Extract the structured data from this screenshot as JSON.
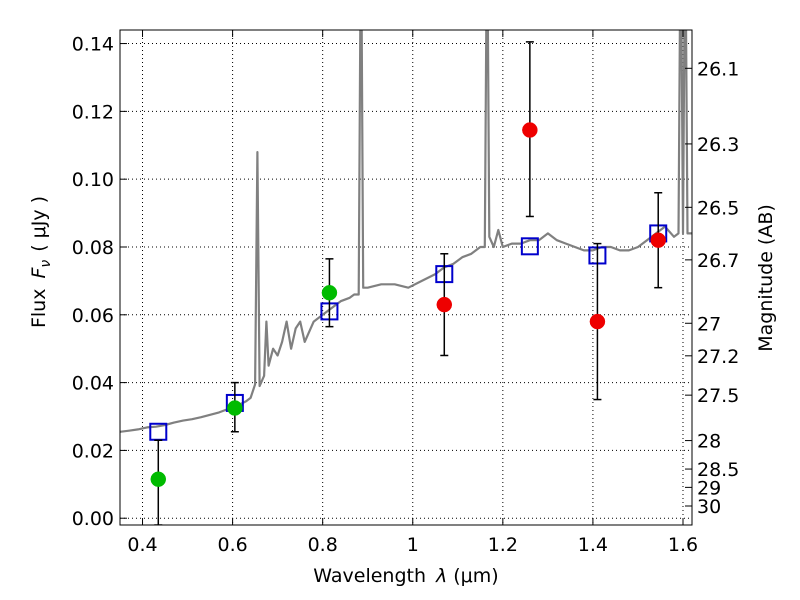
{
  "chart_data": {
    "type": "scatter",
    "xlabel": "Wavelength",
    "xlabel_symbol": "λ",
    "xlabel_unit": "(μm)",
    "ylabel": "Flux",
    "ylabel_symbol": "F",
    "ylabel_subscript": "ν",
    "ylabel_unit": "( μJy )",
    "y2label": "Magnitude (AB)",
    "xlim": [
      0.35,
      1.62
    ],
    "ylim": [
      -0.002,
      0.144
    ],
    "grid": true,
    "x_ticks": [
      {
        "value": 0.4,
        "label": "0.4"
      },
      {
        "value": 0.6,
        "label": "0.6"
      },
      {
        "value": 0.8,
        "label": "0.8"
      },
      {
        "value": 1.0,
        "label": "1"
      },
      {
        "value": 1.2,
        "label": "1.2"
      },
      {
        "value": 1.4,
        "label": "1.4"
      },
      {
        "value": 1.6,
        "label": "1.6"
      }
    ],
    "y_ticks": [
      {
        "value": 0.0,
        "label": "0.00"
      },
      {
        "value": 0.02,
        "label": "0.02"
      },
      {
        "value": 0.04,
        "label": "0.04"
      },
      {
        "value": 0.06,
        "label": "0.06"
      },
      {
        "value": 0.08,
        "label": "0.08"
      },
      {
        "value": 0.1,
        "label": "0.10"
      },
      {
        "value": 0.12,
        "label": "0.12"
      },
      {
        "value": 0.14,
        "label": "0.14"
      }
    ],
    "y2_ticks": [
      {
        "flux": 0.1327,
        "label": "26.1"
      },
      {
        "flux": 0.1104,
        "label": "26.3"
      },
      {
        "flux": 0.0917,
        "label": "26.5"
      },
      {
        "flux": 0.0762,
        "label": "26.7"
      },
      {
        "flux": 0.0575,
        "label": "27"
      },
      {
        "flux": 0.0479,
        "label": "27.2"
      },
      {
        "flux": 0.0363,
        "label": "27.5"
      },
      {
        "flux": 0.0229,
        "label": "28"
      },
      {
        "flux": 0.0145,
        "label": "28.5"
      },
      {
        "flux": 0.0091,
        "label": "29"
      },
      {
        "flux": 0.0036,
        "label": "30"
      }
    ],
    "colors": {
      "model": "#808080",
      "detection": "#00bb00",
      "dropout": "#ee0000",
      "model_photometry": "#0000cc",
      "errorbar": "#000000"
    },
    "series": [
      {
        "type": "line",
        "color": "#808080",
        "points": [
          [
            0.35,
            0.0255
          ],
          [
            0.37,
            0.0258
          ],
          [
            0.39,
            0.0262
          ],
          [
            0.41,
            0.0268
          ],
          [
            0.43,
            0.027
          ],
          [
            0.45,
            0.0275
          ],
          [
            0.47,
            0.0282
          ],
          [
            0.49,
            0.0288
          ],
          [
            0.51,
            0.0292
          ],
          [
            0.53,
            0.0298
          ],
          [
            0.55,
            0.0305
          ],
          [
            0.57,
            0.0312
          ],
          [
            0.59,
            0.0322
          ],
          [
            0.61,
            0.0332
          ],
          [
            0.63,
            0.0345
          ],
          [
            0.64,
            0.0355
          ],
          [
            0.65,
            0.0395
          ],
          [
            0.655,
            0.108
          ],
          [
            0.66,
            0.039
          ],
          [
            0.67,
            0.042
          ],
          [
            0.675,
            0.058
          ],
          [
            0.68,
            0.045
          ],
          [
            0.69,
            0.05
          ],
          [
            0.7,
            0.048
          ],
          [
            0.71,
            0.052
          ],
          [
            0.72,
            0.058
          ],
          [
            0.73,
            0.05
          ],
          [
            0.74,
            0.056
          ],
          [
            0.75,
            0.058
          ],
          [
            0.76,
            0.052
          ],
          [
            0.78,
            0.058
          ],
          [
            0.8,
            0.06
          ],
          [
            0.82,
            0.062
          ],
          [
            0.84,
            0.064
          ],
          [
            0.86,
            0.065
          ],
          [
            0.87,
            0.066
          ],
          [
            0.88,
            0.066
          ],
          [
            0.885,
            0.18
          ],
          [
            0.89,
            0.068
          ],
          [
            0.9,
            0.068
          ],
          [
            0.93,
            0.069
          ],
          [
            0.96,
            0.069
          ],
          [
            0.99,
            0.068
          ],
          [
            1.02,
            0.07
          ],
          [
            1.05,
            0.072
          ],
          [
            1.07,
            0.074
          ],
          [
            1.09,
            0.075
          ],
          [
            1.11,
            0.077
          ],
          [
            1.13,
            0.078
          ],
          [
            1.15,
            0.08
          ],
          [
            1.16,
            0.08
          ],
          [
            1.165,
            0.18
          ],
          [
            1.17,
            0.083
          ],
          [
            1.18,
            0.08
          ],
          [
            1.19,
            0.085
          ],
          [
            1.2,
            0.08
          ],
          [
            1.22,
            0.081
          ],
          [
            1.24,
            0.081
          ],
          [
            1.26,
            0.082
          ],
          [
            1.28,
            0.082
          ],
          [
            1.3,
            0.084
          ],
          [
            1.32,
            0.082
          ],
          [
            1.34,
            0.081
          ],
          [
            1.36,
            0.08
          ],
          [
            1.38,
            0.079
          ],
          [
            1.4,
            0.079
          ],
          [
            1.42,
            0.08
          ],
          [
            1.44,
            0.08
          ],
          [
            1.46,
            0.079
          ],
          [
            1.48,
            0.079
          ],
          [
            1.5,
            0.08
          ],
          [
            1.52,
            0.082
          ],
          [
            1.54,
            0.084
          ],
          [
            1.56,
            0.086
          ],
          [
            1.58,
            0.083
          ],
          [
            1.59,
            0.084
          ],
          [
            1.595,
            0.18
          ],
          [
            1.6,
            0.084
          ],
          [
            1.605,
            0.18
          ],
          [
            1.61,
            0.084
          ],
          [
            1.62,
            0.084
          ]
        ]
      },
      {
        "type": "markers",
        "marker": "open-square",
        "color": "#0000cc",
        "points": [
          [
            0.435,
            0.0255
          ],
          [
            0.605,
            0.034
          ],
          [
            0.815,
            0.061
          ],
          [
            1.07,
            0.072
          ],
          [
            1.26,
            0.0802
          ],
          [
            1.41,
            0.0775
          ],
          [
            1.545,
            0.084
          ]
        ]
      },
      {
        "type": "errorbars",
        "color": "#000000",
        "bars": [
          {
            "x": 0.435,
            "low": -0.002,
            "high": 0.023
          },
          {
            "x": 0.605,
            "low": 0.0255,
            "high": 0.04
          },
          {
            "x": 0.815,
            "low": 0.0565,
            "high": 0.0765
          },
          {
            "x": 1.07,
            "low": 0.048,
            "high": 0.078
          },
          {
            "x": 1.26,
            "low": 0.089,
            "high": 0.1405
          },
          {
            "x": 1.41,
            "low": 0.035,
            "high": 0.081
          },
          {
            "x": 1.545,
            "low": 0.068,
            "high": 0.096
          }
        ]
      },
      {
        "type": "markers",
        "marker": "filled-circle",
        "color": "#00bb00",
        "points": [
          [
            0.435,
            0.0115
          ],
          [
            0.605,
            0.0325
          ],
          [
            0.815,
            0.0665
          ]
        ]
      },
      {
        "type": "markers",
        "marker": "filled-circle",
        "color": "#ee0000",
        "points": [
          [
            1.07,
            0.063
          ],
          [
            1.26,
            0.1145
          ],
          [
            1.41,
            0.058
          ],
          [
            1.545,
            0.082
          ]
        ]
      }
    ]
  }
}
